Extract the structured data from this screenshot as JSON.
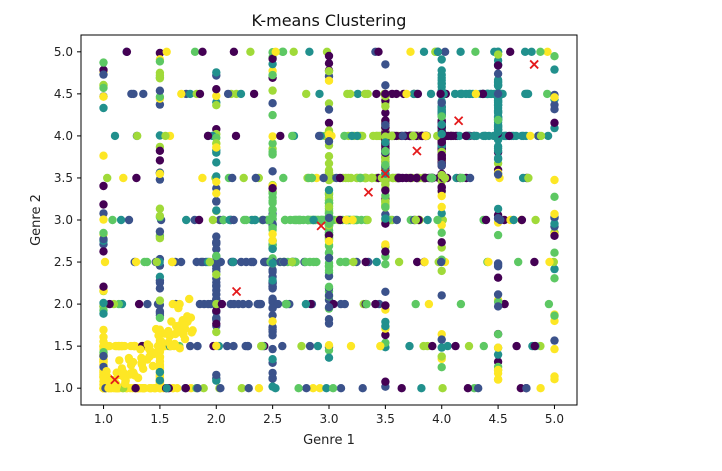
{
  "chart_data": {
    "type": "scatter",
    "title": "K-means Clustering",
    "xlabel": "Genre 1",
    "ylabel": "Genre 2",
    "xlim": [
      0.8,
      5.2
    ],
    "ylim": [
      0.8,
      5.2
    ],
    "xticks": [
      "1.0",
      "1.5",
      "2.0",
      "2.5",
      "3.0",
      "3.5",
      "4.0",
      "4.5",
      "5.0"
    ],
    "yticks": [
      "1.0",
      "1.5",
      "2.0",
      "2.5",
      "3.0",
      "3.5",
      "4.0",
      "4.5",
      "5.0"
    ],
    "grid": false,
    "legend": "none",
    "cluster_colors": [
      "#440154",
      "#3b528b",
      "#21908d",
      "#5dc863",
      "#a0da39",
      "#fde725"
    ],
    "centroid_color": "#e41a1c",
    "centroids": [
      {
        "x": 1.1,
        "y": 1.1
      },
      {
        "x": 2.18,
        "y": 2.15
      },
      {
        "x": 2.93,
        "y": 2.93
      },
      {
        "x": 3.35,
        "y": 3.33
      },
      {
        "x": 3.5,
        "y": 3.55
      },
      {
        "x": 3.78,
        "y": 3.82
      },
      {
        "x": 4.15,
        "y": 4.18
      },
      {
        "x": 4.82,
        "y": 4.85
      }
    ],
    "clusters": [
      {
        "cluster": 0,
        "center": [
          3.8,
          3.9
        ],
        "spread": 0.25
      },
      {
        "cluster": 1,
        "center": [
          2.2,
          2.2
        ],
        "spread": 0.45
      },
      {
        "cluster": 2,
        "center": [
          4.3,
          4.3
        ],
        "spread": 0.3
      },
      {
        "cluster": 3,
        "center": [
          2.9,
          2.9
        ],
        "spread": 0.25
      },
      {
        "cluster": 4,
        "center": [
          3.4,
          3.6
        ],
        "spread": 0.35
      },
      {
        "cluster": 5,
        "center": [
          1.2,
          1.2
        ],
        "spread": 0.2
      }
    ]
  }
}
